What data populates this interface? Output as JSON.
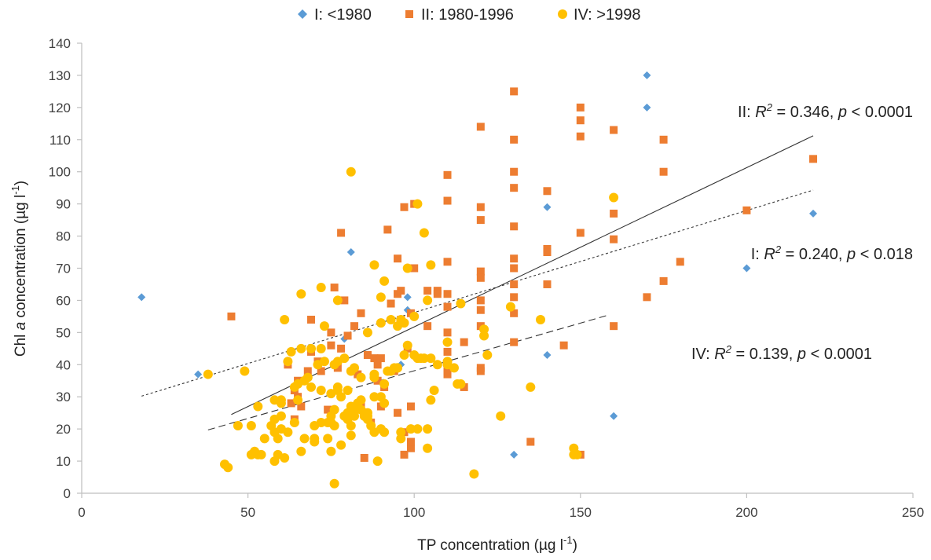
{
  "chart_data": {
    "type": "scatter",
    "title": "",
    "xlabel_main": "TP concentration (µg l",
    "xlabel_sup": "-1",
    "xlabel_end": ")",
    "ylabel_pre": "Chl ",
    "ylabel_italic": "a",
    "ylabel_main": " concentration (µg l",
    "ylabel_sup": "-1",
    "ylabel_end": ")",
    "xlim": [
      0,
      250
    ],
    "ylim": [
      0,
      140
    ],
    "x_ticks": [
      "0",
      "50",
      "100",
      "150",
      "200",
      "250"
    ],
    "y_ticks": [
      "0",
      "10",
      "20",
      "30",
      "40",
      "50",
      "60",
      "70",
      "80",
      "90",
      "100",
      "110",
      "120",
      "130",
      "140"
    ],
    "legend_position": "top-center",
    "series": [
      {
        "name": "I: <1980",
        "marker": "diamond",
        "color": "#5b9bd5",
        "points": [
          [
            18,
            61
          ],
          [
            35,
            37
          ],
          [
            79,
            48
          ],
          [
            81,
            75
          ],
          [
            96,
            40
          ],
          [
            98,
            61
          ],
          [
            98,
            57
          ],
          [
            130,
            12
          ],
          [
            140,
            89
          ],
          [
            140,
            43
          ],
          [
            160,
            24
          ],
          [
            170,
            130
          ],
          [
            170,
            120
          ],
          [
            200,
            70
          ],
          [
            220,
            87
          ]
        ]
      },
      {
        "name": "II: 1980-1996",
        "marker": "square",
        "color": "#ed7d31",
        "points": [
          [
            45,
            55
          ],
          [
            62,
            40
          ],
          [
            63,
            28
          ],
          [
            64,
            32
          ],
          [
            64,
            23
          ],
          [
            65,
            30
          ],
          [
            65,
            35
          ],
          [
            66,
            27
          ],
          [
            68,
            38
          ],
          [
            69,
            44
          ],
          [
            69,
            54
          ],
          [
            71,
            41
          ],
          [
            72,
            38
          ],
          [
            74,
            26
          ],
          [
            75,
            46
          ],
          [
            75,
            50
          ],
          [
            76,
            64
          ],
          [
            77,
            39
          ],
          [
            78,
            81
          ],
          [
            78,
            45
          ],
          [
            79,
            60
          ],
          [
            80,
            49
          ],
          [
            82,
            52
          ],
          [
            83,
            37
          ],
          [
            84,
            56
          ],
          [
            84,
            28
          ],
          [
            85,
            11
          ],
          [
            86,
            43
          ],
          [
            87,
            22
          ],
          [
            88,
            42
          ],
          [
            89,
            35
          ],
          [
            89,
            40
          ],
          [
            90,
            27
          ],
          [
            90,
            42
          ],
          [
            91,
            33
          ],
          [
            92,
            82
          ],
          [
            93,
            59
          ],
          [
            94,
            38
          ],
          [
            95,
            62
          ],
          [
            95,
            73
          ],
          [
            95,
            25
          ],
          [
            96,
            63
          ],
          [
            96,
            54
          ],
          [
            97,
            19
          ],
          [
            97,
            89
          ],
          [
            97,
            12
          ],
          [
            98,
            45
          ],
          [
            99,
            56
          ],
          [
            99,
            27
          ],
          [
            99,
            14
          ],
          [
            99,
            16
          ],
          [
            100,
            70
          ],
          [
            100,
            90
          ],
          [
            104,
            63
          ],
          [
            104,
            52
          ],
          [
            107,
            63
          ],
          [
            107,
            62
          ],
          [
            110,
            99
          ],
          [
            110,
            91
          ],
          [
            110,
            72
          ],
          [
            110,
            62
          ],
          [
            110,
            58
          ],
          [
            110,
            50
          ],
          [
            110,
            44
          ],
          [
            110,
            40
          ],
          [
            110,
            38
          ],
          [
            110,
            37
          ],
          [
            115,
            47
          ],
          [
            115,
            33
          ],
          [
            120,
            114
          ],
          [
            120,
            89
          ],
          [
            120,
            85
          ],
          [
            120,
            69
          ],
          [
            120,
            67
          ],
          [
            120,
            60
          ],
          [
            120,
            57
          ],
          [
            120,
            52
          ],
          [
            120,
            39
          ],
          [
            120,
            38
          ],
          [
            130,
            125
          ],
          [
            130,
            110
          ],
          [
            130,
            100
          ],
          [
            130,
            95
          ],
          [
            130,
            83
          ],
          [
            130,
            73
          ],
          [
            130,
            70
          ],
          [
            130,
            65
          ],
          [
            130,
            61
          ],
          [
            130,
            56
          ],
          [
            130,
            47
          ],
          [
            135,
            16
          ],
          [
            140,
            94
          ],
          [
            140,
            76
          ],
          [
            140,
            75
          ],
          [
            140,
            65
          ],
          [
            145,
            46
          ],
          [
            150,
            120
          ],
          [
            150,
            116
          ],
          [
            150,
            111
          ],
          [
            150,
            81
          ],
          [
            150,
            12
          ],
          [
            160,
            113
          ],
          [
            160,
            87
          ],
          [
            160,
            79
          ],
          [
            160,
            52
          ],
          [
            170,
            61
          ],
          [
            175,
            110
          ],
          [
            175,
            100
          ],
          [
            175,
            66
          ],
          [
            180,
            72
          ],
          [
            200,
            88
          ],
          [
            220,
            104
          ]
        ]
      },
      {
        "name": "IV: >1998",
        "marker": "circle",
        "color": "#ffc000",
        "points": [
          [
            38,
            37
          ],
          [
            43,
            9
          ],
          [
            44,
            8
          ],
          [
            47,
            21
          ],
          [
            49,
            38
          ],
          [
            51,
            12
          ],
          [
            51,
            21
          ],
          [
            52,
            13
          ],
          [
            53,
            27
          ],
          [
            53,
            12
          ],
          [
            54,
            12
          ],
          [
            55,
            17
          ],
          [
            57,
            21
          ],
          [
            58,
            10
          ],
          [
            58,
            29
          ],
          [
            58,
            23
          ],
          [
            58,
            19
          ],
          [
            59,
            12
          ],
          [
            59,
            17
          ],
          [
            60,
            28
          ],
          [
            60,
            24
          ],
          [
            60,
            20
          ],
          [
            60,
            29
          ],
          [
            61,
            11
          ],
          [
            61,
            54
          ],
          [
            62,
            41
          ],
          [
            62,
            19
          ],
          [
            63,
            44
          ],
          [
            64,
            33
          ],
          [
            64,
            22
          ],
          [
            65,
            34
          ],
          [
            65,
            29
          ],
          [
            66,
            62
          ],
          [
            66,
            45
          ],
          [
            66,
            13
          ],
          [
            67,
            35
          ],
          [
            67,
            17
          ],
          [
            68,
            36
          ],
          [
            69,
            45
          ],
          [
            69,
            33
          ],
          [
            70,
            21
          ],
          [
            70,
            16
          ],
          [
            70,
            17
          ],
          [
            71,
            40
          ],
          [
            72,
            22
          ],
          [
            72,
            64
          ],
          [
            72,
            45
          ],
          [
            72,
            32
          ],
          [
            73,
            52
          ],
          [
            73,
            41
          ],
          [
            74,
            17
          ],
          [
            74,
            22
          ],
          [
            75,
            13
          ],
          [
            75,
            24
          ],
          [
            75,
            31
          ],
          [
            75,
            22
          ],
          [
            76,
            3
          ],
          [
            76,
            40
          ],
          [
            76,
            26
          ],
          [
            76,
            21
          ],
          [
            77,
            60
          ],
          [
            77,
            41
          ],
          [
            77,
            32
          ],
          [
            77,
            33
          ],
          [
            78,
            15
          ],
          [
            78,
            30
          ],
          [
            79,
            42
          ],
          [
            79,
            24
          ],
          [
            80,
            32
          ],
          [
            80,
            23
          ],
          [
            80,
            25
          ],
          [
            81,
            100
          ],
          [
            81,
            38
          ],
          [
            81,
            27
          ],
          [
            81,
            21
          ],
          [
            81,
            18
          ],
          [
            82,
            39
          ],
          [
            82,
            26
          ],
          [
            82,
            24
          ],
          [
            83,
            28
          ],
          [
            84,
            36
          ],
          [
            84,
            29
          ],
          [
            84,
            26
          ],
          [
            85,
            24
          ],
          [
            85,
            25
          ],
          [
            86,
            50
          ],
          [
            86,
            25
          ],
          [
            86,
            23
          ],
          [
            86,
            24
          ],
          [
            87,
            21
          ],
          [
            88,
            71
          ],
          [
            88,
            37
          ],
          [
            88,
            36
          ],
          [
            88,
            30
          ],
          [
            88,
            19
          ],
          [
            89,
            10
          ],
          [
            90,
            20
          ],
          [
            90,
            61
          ],
          [
            90,
            53
          ],
          [
            90,
            30
          ],
          [
            91,
            66
          ],
          [
            91,
            34
          ],
          [
            91,
            28
          ],
          [
            91,
            19
          ],
          [
            92,
            38
          ],
          [
            93,
            54
          ],
          [
            93,
            38
          ],
          [
            94,
            39
          ],
          [
            95,
            39
          ],
          [
            95,
            52
          ],
          [
            95,
            39
          ],
          [
            96,
            54
          ],
          [
            96,
            19
          ],
          [
            96,
            17
          ],
          [
            97,
            53
          ],
          [
            97,
            43
          ],
          [
            98,
            46
          ],
          [
            98,
            70
          ],
          [
            99,
            20
          ],
          [
            100,
            55
          ],
          [
            100,
            43
          ],
          [
            101,
            90
          ],
          [
            101,
            42
          ],
          [
            101,
            20
          ],
          [
            102,
            42
          ],
          [
            103,
            81
          ],
          [
            103,
            42
          ],
          [
            104,
            20
          ],
          [
            104,
            14
          ],
          [
            104,
            60
          ],
          [
            105,
            29
          ],
          [
            105,
            42
          ],
          [
            105,
            71
          ],
          [
            106,
            32
          ],
          [
            107,
            40
          ],
          [
            110,
            47
          ],
          [
            110,
            40
          ],
          [
            110,
            41
          ],
          [
            112,
            39
          ],
          [
            113,
            34
          ],
          [
            114,
            34
          ],
          [
            114,
            59
          ],
          [
            118,
            6
          ],
          [
            121,
            51
          ],
          [
            121,
            49
          ],
          [
            122,
            43
          ],
          [
            126,
            24
          ],
          [
            129,
            58
          ],
          [
            135,
            33
          ],
          [
            138,
            54
          ],
          [
            148,
            14
          ],
          [
            148,
            12
          ],
          [
            149,
            12
          ],
          [
            160,
            92
          ]
        ]
      }
    ],
    "trendlines": [
      {
        "name": "II",
        "style": "solid",
        "x": [
          45,
          220
        ],
        "y": [
          24.5,
          111.2
        ]
      },
      {
        "name": "I",
        "style": "dotted",
        "x": [
          18,
          220
        ],
        "y": [
          30.2,
          94.3
        ]
      },
      {
        "name": "IV",
        "style": "dashed",
        "x": [
          38,
          158
        ],
        "y": [
          19.7,
          55.3
        ]
      }
    ],
    "annotations": [
      {
        "series": "II",
        "prefix": "II: ",
        "r": "R",
        "sq": "2",
        "stat": " = 0.346, ",
        "p": "p",
        "tail": " < 0.0001"
      },
      {
        "series": "I",
        "prefix": "I: ",
        "r": "R",
        "sq": "2",
        "stat": " = 0.240, ",
        "p": "p",
        "tail": " < 0.018"
      },
      {
        "series": "IV",
        "prefix": "IV: ",
        "r": "R",
        "sq": "2",
        "stat": " = 0.139, ",
        "p": "p",
        "tail": " < 0.0001"
      }
    ]
  }
}
